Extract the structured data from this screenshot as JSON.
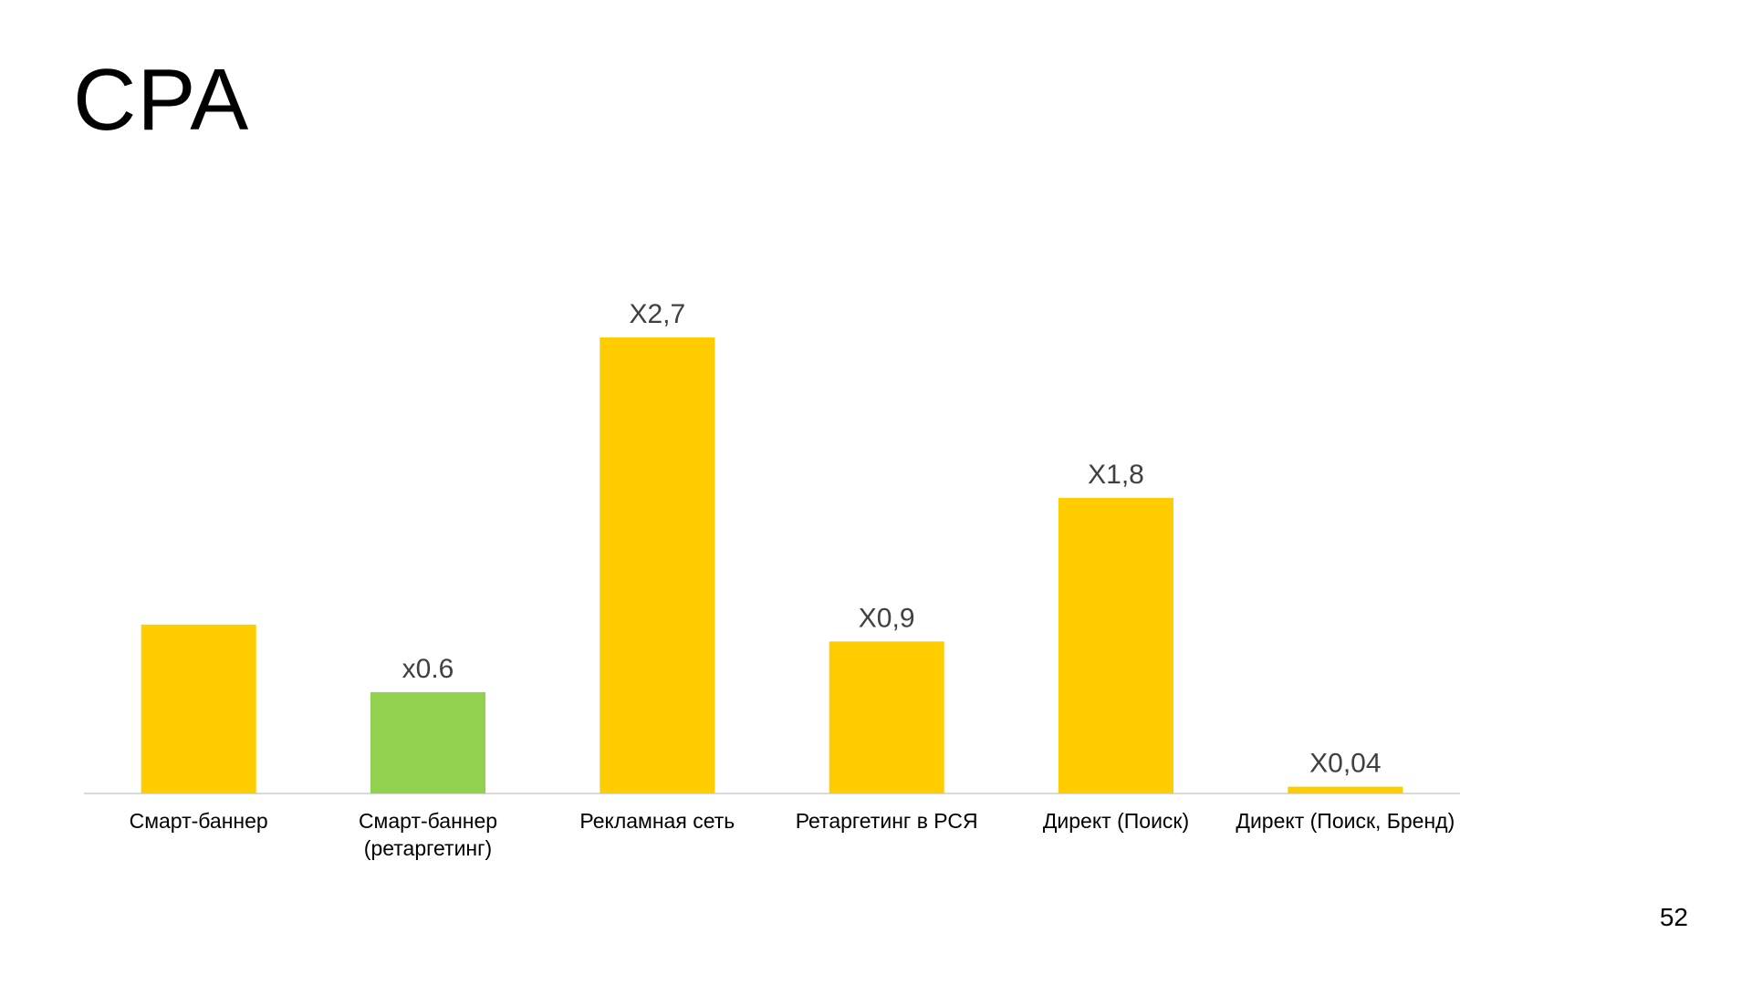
{
  "slide": {
    "title": "CPA",
    "page_number": "52"
  },
  "colors": {
    "primary_bar": "#FFCC00",
    "highlight_bar": "#92D050",
    "axis_line": "#D9D9D9",
    "label_text": "#000000",
    "data_label_text": "#404040"
  },
  "chart_data": {
    "type": "bar",
    "title": "",
    "xlabel": "",
    "ylabel": "",
    "categories": [
      [
        "Смарт-баннер"
      ],
      [
        "Смарт-баннер",
        "(ретаргетинг)"
      ],
      [
        "Рекламная сеть"
      ],
      [
        "Ретаргетинг в РСЯ"
      ],
      [
        "Директ (Поиск)"
      ],
      [
        "Директ (Поиск, Бренд)"
      ]
    ],
    "values": [
      1.0,
      0.6,
      2.7,
      0.9,
      1.75,
      0.04
    ],
    "data_labels": [
      "",
      "x0.6",
      "X2,7",
      "X0,9",
      "X1,8",
      "X0,04"
    ],
    "highlight_index": 1,
    "ylim": [
      0,
      2.7
    ],
    "grid": false,
    "legend": "none"
  }
}
